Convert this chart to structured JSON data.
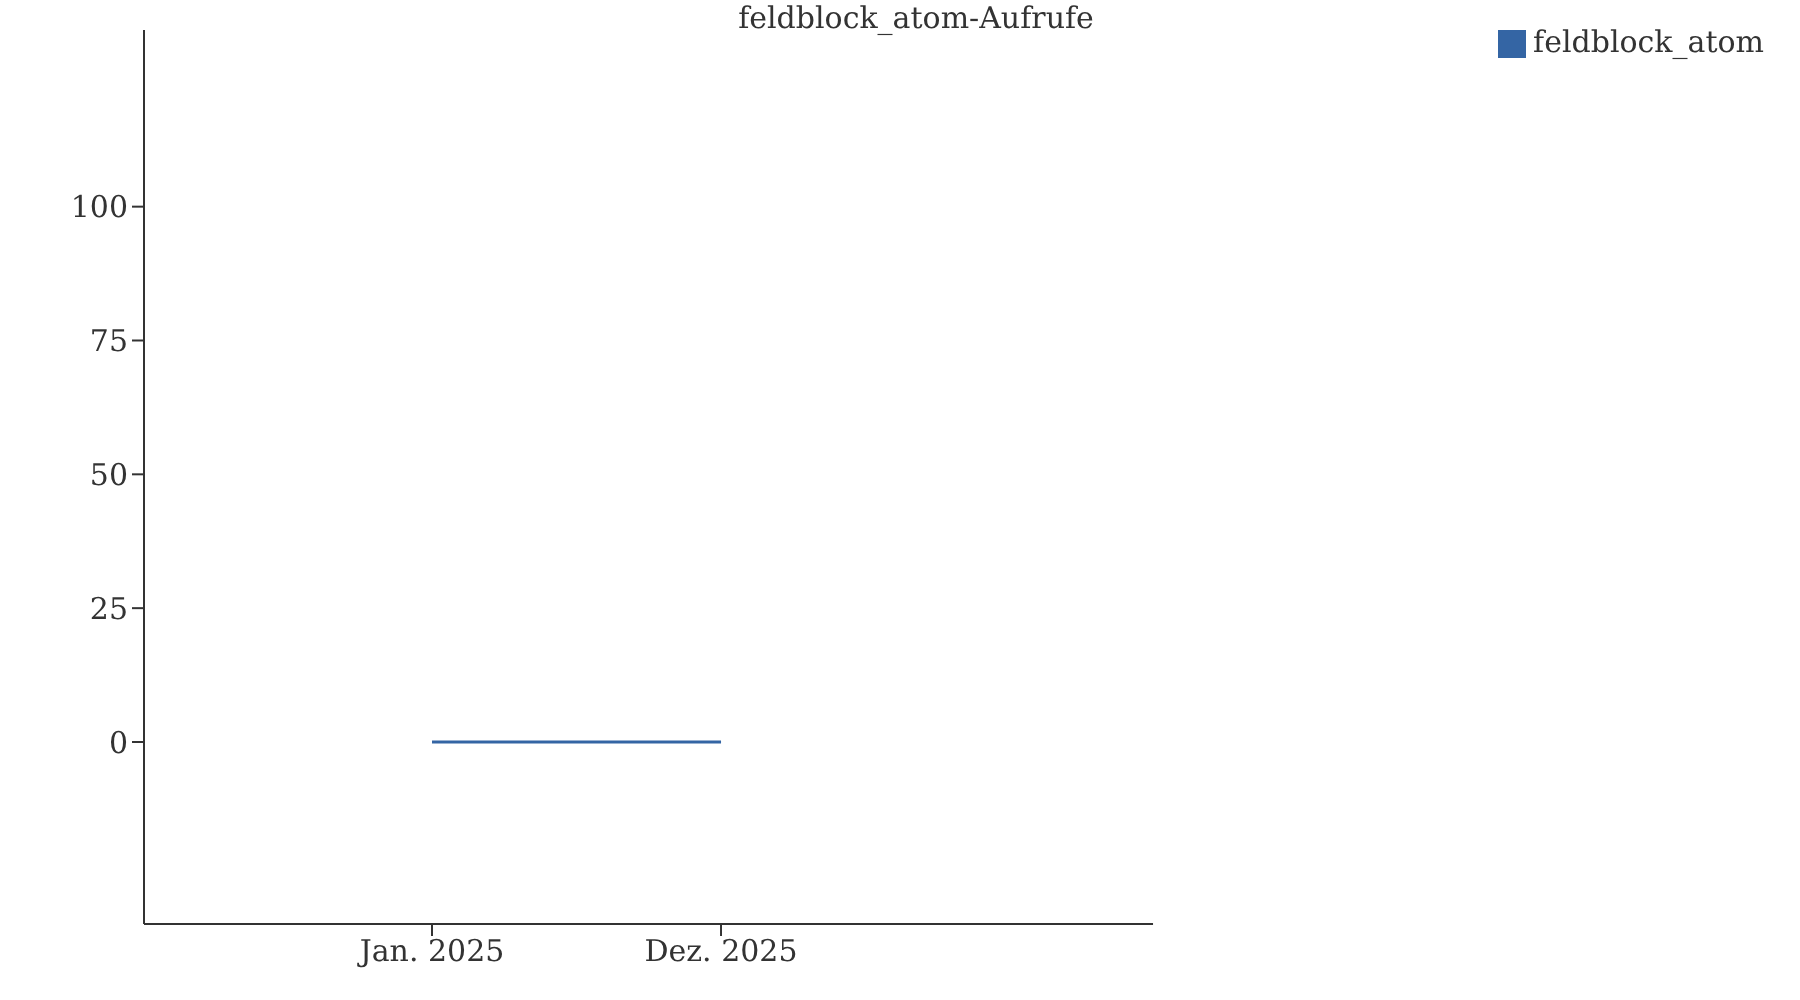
{
  "chart_data": {
    "type": "line",
    "title": "feldblock_atom-Aufrufe",
    "categories": [
      "Jan. 2025",
      "Dez. 2025"
    ],
    "series": [
      {
        "name": "feldblock_atom",
        "color": "#3465a4",
        "values": [
          0,
          0
        ]
      }
    ],
    "ylim": [
      -34,
      133
    ],
    "yticks": [
      0,
      25,
      50,
      75,
      100
    ],
    "legend": "top right",
    "marker": "none"
  }
}
